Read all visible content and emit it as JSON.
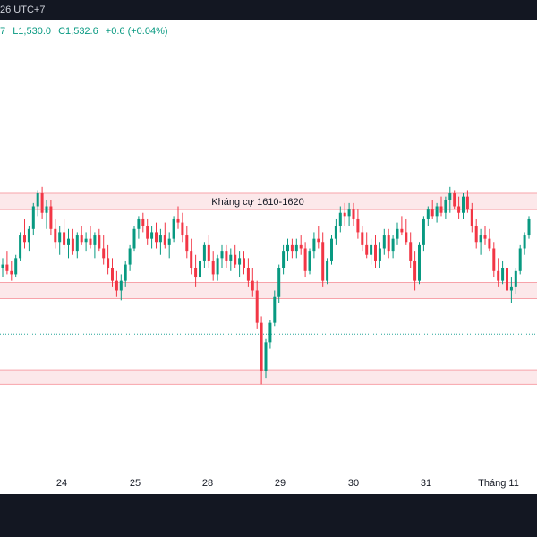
{
  "header": {
    "fragment": "26 UTC+7"
  },
  "legend": {
    "fragment_open": "7",
    "low": "L1,530.0",
    "close": "C1,532.6",
    "change": "+0.6 (+0.04%)"
  },
  "annotation": {
    "resistance_label": "Kháng cự 1610-1620"
  },
  "colors": {
    "up": "#089981",
    "down": "#f23645",
    "zone_fill": "#fce8ea",
    "zone_border": "#f7a3aa",
    "dotted_line": "#26a69a",
    "background": "#ffffff",
    "frame": "#131722"
  },
  "chart_data": {
    "type": "candlestick",
    "title": "",
    "xlabel": "",
    "ylabel": "",
    "x_ticks": [
      "24",
      "25",
      "28",
      "29",
      "30",
      "31",
      "Tháng 11"
    ],
    "y_axis_labels_visible": false,
    "grid": false,
    "price_scale_note": "approximate; y-axis not shown",
    "zones": [
      {
        "label": "Kháng cự 1610-1620",
        "from": 1610,
        "to": 1620
      },
      {
        "label": "",
        "from": 1555,
        "to": 1565
      },
      {
        "label": "",
        "from": 1502,
        "to": 1511
      }
    ],
    "dotted_level": 1533,
    "series": [
      {
        "values": [
          [
            1574,
            1580,
            1568,
            1576
          ],
          [
            1576,
            1584,
            1570,
            1572
          ],
          [
            1572,
            1578,
            1566,
            1570
          ],
          [
            1570,
            1582,
            1568,
            1580
          ],
          [
            1580,
            1596,
            1578,
            1594
          ],
          [
            1594,
            1604,
            1586,
            1590
          ],
          [
            1590,
            1600,
            1584,
            1598
          ],
          [
            1598,
            1614,
            1594,
            1612
          ],
          [
            1612,
            1622,
            1606,
            1620
          ],
          [
            1620,
            1624,
            1604,
            1608
          ],
          [
            1608,
            1616,
            1598,
            1612
          ],
          [
            1612,
            1616,
            1594,
            1598
          ],
          [
            1598,
            1604,
            1586,
            1590
          ],
          [
            1590,
            1600,
            1582,
            1596
          ],
          [
            1596,
            1604,
            1586,
            1588
          ],
          [
            1588,
            1598,
            1580,
            1592
          ],
          [
            1592,
            1598,
            1582,
            1584
          ],
          [
            1584,
            1596,
            1580,
            1594
          ],
          [
            1594,
            1600,
            1588,
            1590
          ],
          [
            1590,
            1596,
            1584,
            1592
          ],
          [
            1592,
            1600,
            1586,
            1588
          ],
          [
            1588,
            1596,
            1580,
            1594
          ],
          [
            1594,
            1598,
            1584,
            1586
          ],
          [
            1586,
            1594,
            1576,
            1580
          ],
          [
            1580,
            1588,
            1570,
            1574
          ],
          [
            1574,
            1580,
            1562,
            1566
          ],
          [
            1566,
            1572,
            1556,
            1560
          ],
          [
            1560,
            1570,
            1554,
            1566
          ],
          [
            1566,
            1578,
            1562,
            1576
          ],
          [
            1576,
            1588,
            1572,
            1586
          ],
          [
            1586,
            1600,
            1584,
            1598
          ],
          [
            1598,
            1606,
            1592,
            1604
          ],
          [
            1604,
            1608,
            1596,
            1600
          ],
          [
            1600,
            1604,
            1588,
            1592
          ],
          [
            1592,
            1600,
            1586,
            1596
          ],
          [
            1596,
            1602,
            1586,
            1590
          ],
          [
            1590,
            1598,
            1582,
            1594
          ],
          [
            1594,
            1602,
            1586,
            1588
          ],
          [
            1588,
            1596,
            1580,
            1592
          ],
          [
            1592,
            1606,
            1590,
            1604
          ],
          [
            1604,
            1612,
            1598,
            1602
          ],
          [
            1602,
            1608,
            1590,
            1594
          ],
          [
            1594,
            1600,
            1580,
            1584
          ],
          [
            1584,
            1592,
            1570,
            1574
          ],
          [
            1574,
            1582,
            1562,
            1568
          ],
          [
            1568,
            1580,
            1566,
            1578
          ],
          [
            1578,
            1590,
            1574,
            1588
          ],
          [
            1588,
            1594,
            1574,
            1578
          ],
          [
            1578,
            1584,
            1566,
            1570
          ],
          [
            1570,
            1582,
            1566,
            1580
          ],
          [
            1580,
            1588,
            1574,
            1584
          ],
          [
            1584,
            1588,
            1574,
            1578
          ],
          [
            1578,
            1586,
            1572,
            1582
          ],
          [
            1582,
            1588,
            1574,
            1576
          ],
          [
            1576,
            1584,
            1568,
            1580
          ],
          [
            1580,
            1584,
            1570,
            1574
          ],
          [
            1574,
            1580,
            1562,
            1566
          ],
          [
            1566,
            1574,
            1556,
            1560
          ],
          [
            1560,
            1566,
            1536,
            1540
          ],
          [
            1540,
            1544,
            1502,
            1510
          ],
          [
            1510,
            1530,
            1506,
            1528
          ],
          [
            1528,
            1542,
            1524,
            1540
          ],
          [
            1540,
            1560,
            1538,
            1556
          ],
          [
            1556,
            1576,
            1552,
            1574
          ],
          [
            1574,
            1588,
            1570,
            1584
          ],
          [
            1584,
            1592,
            1578,
            1588
          ],
          [
            1588,
            1592,
            1580,
            1584
          ],
          [
            1584,
            1592,
            1580,
            1588
          ],
          [
            1588,
            1594,
            1582,
            1586
          ],
          [
            1586,
            1590,
            1568,
            1572
          ],
          [
            1572,
            1586,
            1570,
            1584
          ],
          [
            1584,
            1596,
            1580,
            1592
          ],
          [
            1592,
            1600,
            1586,
            1590
          ],
          [
            1590,
            1596,
            1562,
            1566
          ],
          [
            1566,
            1580,
            1564,
            1578
          ],
          [
            1578,
            1594,
            1576,
            1592
          ],
          [
            1592,
            1604,
            1588,
            1600
          ],
          [
            1600,
            1612,
            1596,
            1608
          ],
          [
            1608,
            1614,
            1600,
            1606
          ],
          [
            1606,
            1614,
            1600,
            1610
          ],
          [
            1610,
            1614,
            1600,
            1604
          ],
          [
            1604,
            1610,
            1592,
            1596
          ],
          [
            1596,
            1600,
            1584,
            1588
          ],
          [
            1588,
            1596,
            1580,
            1582
          ],
          [
            1582,
            1592,
            1576,
            1588
          ],
          [
            1588,
            1594,
            1574,
            1578
          ],
          [
            1578,
            1590,
            1574,
            1586
          ],
          [
            1586,
            1598,
            1582,
            1594
          ],
          [
            1594,
            1598,
            1580,
            1584
          ],
          [
            1584,
            1594,
            1580,
            1592
          ],
          [
            1592,
            1602,
            1588,
            1598
          ],
          [
            1598,
            1606,
            1594,
            1596
          ],
          [
            1596,
            1604,
            1588,
            1590
          ],
          [
            1590,
            1596,
            1574,
            1578
          ],
          [
            1578,
            1584,
            1560,
            1566
          ],
          [
            1566,
            1590,
            1564,
            1588
          ],
          [
            1588,
            1606,
            1584,
            1604
          ],
          [
            1604,
            1612,
            1600,
            1610
          ],
          [
            1610,
            1616,
            1604,
            1606
          ],
          [
            1606,
            1614,
            1602,
            1612
          ],
          [
            1612,
            1618,
            1606,
            1608
          ],
          [
            1608,
            1618,
            1604,
            1616
          ],
          [
            1616,
            1624,
            1608,
            1620
          ],
          [
            1620,
            1622,
            1610,
            1612
          ],
          [
            1612,
            1618,
            1604,
            1608
          ],
          [
            1608,
            1620,
            1604,
            1618
          ],
          [
            1618,
            1622,
            1608,
            1610
          ],
          [
            1610,
            1614,
            1596,
            1600
          ],
          [
            1600,
            1604,
            1586,
            1590
          ],
          [
            1590,
            1598,
            1582,
            1594
          ],
          [
            1594,
            1600,
            1588,
            1592
          ],
          [
            1592,
            1598,
            1584,
            1586
          ],
          [
            1586,
            1590,
            1568,
            1572
          ],
          [
            1572,
            1580,
            1562,
            1566
          ],
          [
            1566,
            1578,
            1564,
            1574
          ],
          [
            1574,
            1580,
            1556,
            1560
          ],
          [
            1560,
            1568,
            1552,
            1562
          ],
          [
            1562,
            1574,
            1558,
            1572
          ],
          [
            1572,
            1588,
            1570,
            1586
          ],
          [
            1586,
            1596,
            1582,
            1594
          ],
          [
            1594,
            1606,
            1592,
            1604
          ]
        ]
      }
    ]
  }
}
